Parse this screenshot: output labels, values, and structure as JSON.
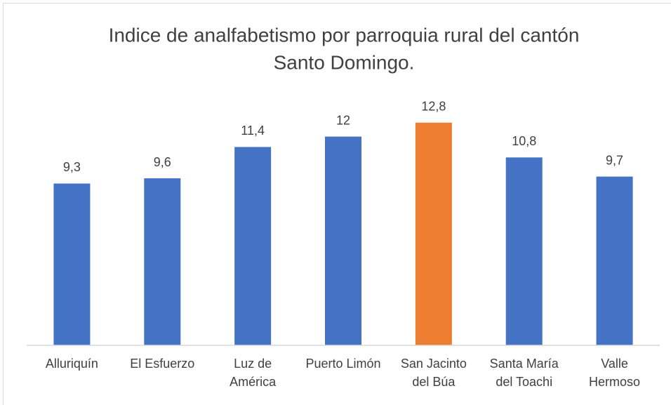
{
  "chart_data": {
    "type": "bar",
    "title": [
      "Indice de analfabetismo por parroquia rural del cantón",
      "Santo Domingo."
    ],
    "categories": [
      "Alluriquín",
      "El Esfuerzo",
      "Luz de América",
      "Puerto Limón",
      "San Jacinto del Búa",
      "Santa María del Toachi",
      "Valle Hermoso"
    ],
    "values": [
      9.3,
      9.6,
      11.4,
      12,
      12.8,
      10.8,
      9.7
    ],
    "value_labels": [
      "9,3",
      "9,6",
      "11,4",
      "12",
      "12,8",
      "10,8",
      "9,7"
    ],
    "colors": [
      "#4472c4",
      "#4472c4",
      "#4472c4",
      "#4472c4",
      "#ed7d31",
      "#4472c4",
      "#4472c4"
    ],
    "ylim": [
      0,
      14
    ]
  }
}
